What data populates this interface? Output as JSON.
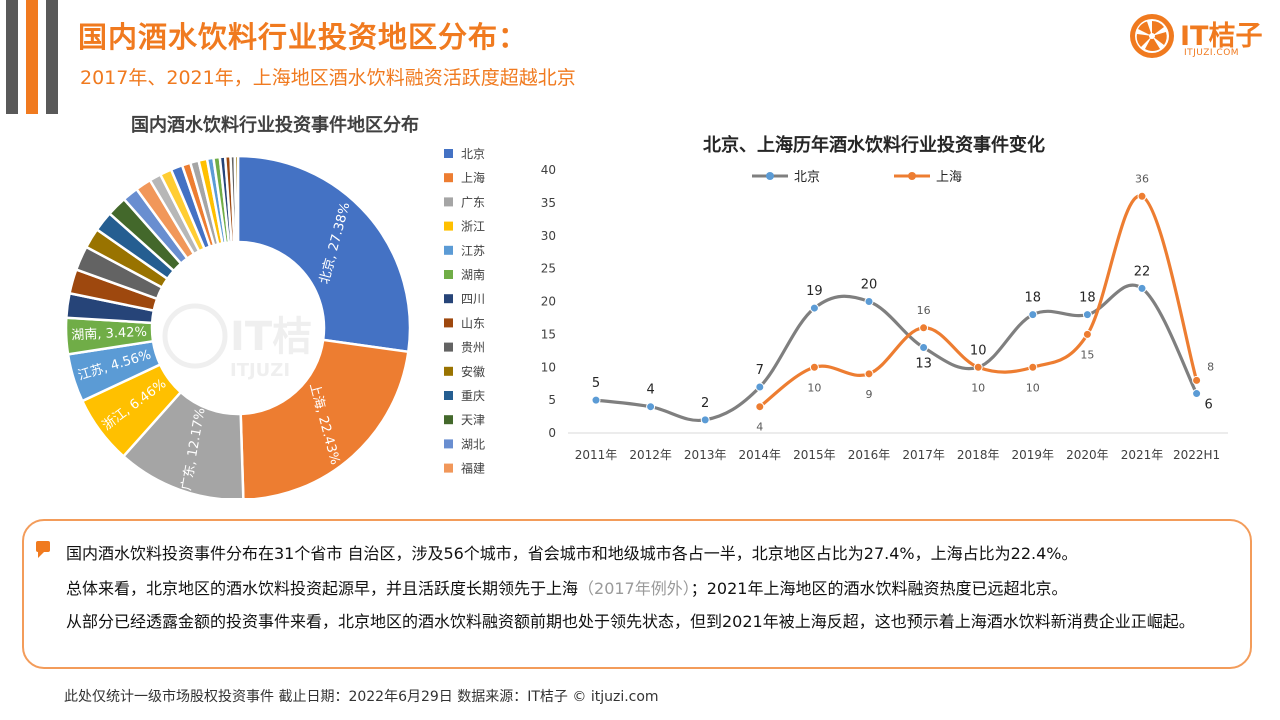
{
  "header": {
    "title": "国内酒水饮料行业投资地区分布：",
    "subtitle": "2017年、2021年，上海地区酒水饮料融资活跃度超越北京",
    "accent_color": "#F07A1F"
  },
  "logo": {
    "name": "IT桔子",
    "url_text": "ITJUZI.COM",
    "icon": "orange-slice-icon",
    "watermark_text": "IT桔",
    "watermark_sub": "ITJUZI"
  },
  "chart_data": [
    {
      "type": "pie",
      "title": "国内酒水饮料行业投资事件地区分布",
      "legend_position": "right",
      "legend": [
        "北京",
        "上海",
        "广东",
        "浙江",
        "江苏",
        "湖南",
        "四川",
        "山东",
        "贵州",
        "安徽",
        "重庆",
        "天津",
        "湖北",
        "福建"
      ],
      "labels": [
        "北京, 27.38%",
        "上海, 22.43%",
        "广东, 12.17%",
        "浙江, 6.46%",
        "江苏, 4.56%",
        "湖南, 3.42%"
      ],
      "slices": [
        {
          "name": "北京",
          "value": 27.38,
          "color": "#4472C4"
        },
        {
          "name": "上海",
          "value": 22.43,
          "color": "#ED7D31"
        },
        {
          "name": "广东",
          "value": 12.17,
          "color": "#A5A5A5"
        },
        {
          "name": "浙江",
          "value": 6.46,
          "color": "#FFC000"
        },
        {
          "name": "江苏",
          "value": 4.56,
          "color": "#5B9BD5"
        },
        {
          "name": "湖南",
          "value": 3.42,
          "color": "#70AD47"
        },
        {
          "name": "四川",
          "value": 2.3,
          "color": "#264478"
        },
        {
          "name": "山东",
          "value": 2.3,
          "color": "#9E480E"
        },
        {
          "name": "贵州",
          "value": 2.3,
          "color": "#636363"
        },
        {
          "name": "安徽",
          "value": 1.9,
          "color": "#997300"
        },
        {
          "name": "重庆",
          "value": 1.9,
          "color": "#255E91"
        },
        {
          "name": "天津",
          "value": 1.9,
          "color": "#43682B"
        },
        {
          "name": "湖北",
          "value": 1.5,
          "color": "#698ED0"
        },
        {
          "name": "福建",
          "value": 1.5,
          "color": "#F1975A"
        },
        {
          "name": "",
          "value": 1.1,
          "color": "#B7B7B7"
        },
        {
          "name": "",
          "value": 1.1,
          "color": "#FFCD33"
        },
        {
          "name": "",
          "value": 1.1,
          "color": "#4472C4"
        },
        {
          "name": "",
          "value": 0.8,
          "color": "#ED7D31"
        },
        {
          "name": "",
          "value": 0.8,
          "color": "#A5A5A5"
        },
        {
          "name": "",
          "value": 0.8,
          "color": "#FFC000"
        },
        {
          "name": "",
          "value": 0.6,
          "color": "#5B9BD5"
        },
        {
          "name": "",
          "value": 0.6,
          "color": "#70AD47"
        },
        {
          "name": "",
          "value": 0.5,
          "color": "#264478"
        },
        {
          "name": "",
          "value": 0.5,
          "color": "#9E480E"
        },
        {
          "name": "",
          "value": 0.4,
          "color": "#636363"
        },
        {
          "name": "",
          "value": 0.3,
          "color": "#997300"
        }
      ]
    },
    {
      "type": "line",
      "title": "北京、上海历年酒水饮料行业投资事件变化",
      "categories": [
        "2011年",
        "2012年",
        "2013年",
        "2014年",
        "2015年",
        "2016年",
        "2017年",
        "2018年",
        "2019年",
        "2020年",
        "2021年",
        "2022H1"
      ],
      "ylim": [
        0,
        40
      ],
      "yticks": [
        "0",
        "5",
        "10",
        "15",
        "20",
        "25",
        "30",
        "35",
        "40"
      ],
      "legend_position": "top-left",
      "grid": false,
      "smooth": true,
      "series": [
        {
          "name": "北京",
          "color": "#7F7F7F",
          "marker_color": "#5B9BD5",
          "values": [
            5,
            4,
            2,
            7,
            19,
            20,
            13,
            10,
            18,
            18,
            22,
            6
          ]
        },
        {
          "name": "上海",
          "color": "#ED7D31",
          "marker_color": "#ED7D31",
          "values": [
            null,
            null,
            null,
            4,
            10,
            9,
            16,
            10,
            10,
            15,
            36,
            8
          ]
        }
      ]
    }
  ],
  "notes": {
    "line1": "国内酒水饮料投资事件分布在31个省市 自治区，涉及56个城市，省会城市和地级城市各占一半，北京地区占比为27.4%，上海占比为22.4%。",
    "line2_a": "总体来看，北京地区的酒水饮料投资起源早，并且活跃度长期领先于上海",
    "line2_b": "（2017年例外）",
    "line2_c": "；2021年上海地区的酒水饮料融资热度已远超北京。",
    "line3": "从部分已经透露金额的投资事件来看，北京地区的酒水饮料融资额前期也处于领先状态，但到2021年被上海反超，这也预示着上海酒水饮料新消费企业正崛起。"
  },
  "footer": {
    "text": "此处仅统计一级市场股权投资事件    截止日期：2022年6月29日    数据来源：IT桔子 © itjuzi.com"
  }
}
